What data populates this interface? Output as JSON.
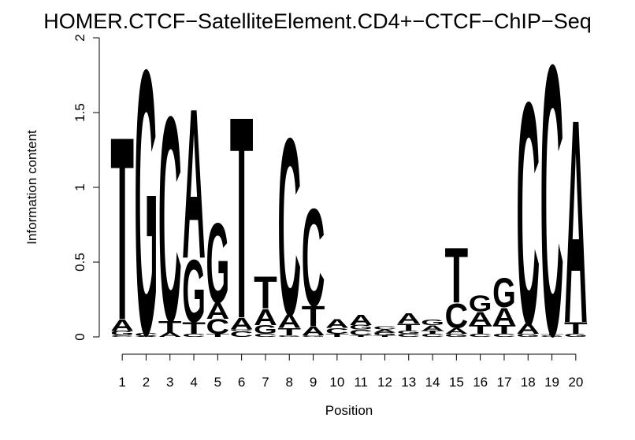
{
  "chart_data": {
    "type": "sequence-logo",
    "title": "HOMER.CTCF−SatelliteElement.CD4+−CTCF−ChIP−Seq",
    "xlabel": "Position",
    "ylabel": "Information content",
    "ylim": [
      0,
      2
    ],
    "yticks": [
      {
        "value": 0,
        "label": "0"
      },
      {
        "value": 0.5,
        "label": "0.5"
      },
      {
        "value": 1,
        "label": "1"
      },
      {
        "value": 1.5,
        "label": "1.5"
      },
      {
        "value": 2,
        "label": "2"
      }
    ],
    "letter_colors": {
      "A": "#00e000",
      "C": "#0000ff",
      "G": "#ffa500",
      "T": "#ff0000"
    },
    "positions": [
      {
        "label": "1",
        "stack": [
          [
            "C",
            0.01
          ],
          [
            "G",
            0.03
          ],
          [
            "A",
            0.08
          ],
          [
            "T",
            1.26
          ]
        ]
      },
      {
        "label": "2",
        "stack": [
          [
            "A",
            0.005
          ],
          [
            "C",
            0.02
          ],
          [
            "G",
            1.82
          ]
        ]
      },
      {
        "label": "3",
        "stack": [
          [
            "A",
            0.03
          ],
          [
            "T",
            0.08
          ],
          [
            "C",
            1.41
          ]
        ]
      },
      {
        "label": "4",
        "stack": [
          [
            "C",
            0.02
          ],
          [
            "T",
            0.08
          ],
          [
            "G",
            0.43
          ],
          [
            "A",
            1.03
          ]
        ]
      },
      {
        "label": "5",
        "stack": [
          [
            "T",
            0.02
          ],
          [
            "C",
            0.1
          ],
          [
            "A",
            0.11
          ],
          [
            "G",
            0.55
          ]
        ]
      },
      {
        "label": "6",
        "stack": [
          [
            "C",
            0.04
          ],
          [
            "G",
            0.01
          ],
          [
            "A",
            0.08
          ],
          [
            "T",
            1.39
          ]
        ]
      },
      {
        "label": "7",
        "stack": [
          [
            "C",
            0.02
          ],
          [
            "G",
            0.06
          ],
          [
            "A",
            0.11
          ],
          [
            "T",
            0.22
          ]
        ]
      },
      {
        "label": "8",
        "stack": [
          [
            "G",
            0.01
          ],
          [
            "T",
            0.05
          ],
          [
            "A",
            0.09
          ],
          [
            "C",
            1.22
          ]
        ]
      },
      {
        "label": "9",
        "stack": [
          [
            "G",
            0.01
          ],
          [
            "A",
            0.06
          ],
          [
            "T",
            0.14
          ],
          [
            "C",
            0.67
          ]
        ]
      },
      {
        "label": "10",
        "stack": [
          [
            "T",
            0.02
          ],
          [
            "C",
            0.04
          ],
          [
            "A",
            0.06
          ]
        ]
      },
      {
        "label": "11",
        "stack": [
          [
            "T",
            0.01
          ],
          [
            "C",
            0.04
          ],
          [
            "G",
            0.03
          ],
          [
            "A",
            0.07
          ]
        ]
      },
      {
        "label": "12",
        "stack": [
          [
            "T",
            0.01
          ],
          [
            "G",
            0.02
          ],
          [
            "A",
            0.02
          ],
          [
            "C",
            0.02
          ]
        ]
      },
      {
        "label": "13",
        "stack": [
          [
            "C",
            0.02
          ],
          [
            "G",
            0.02
          ],
          [
            "T",
            0.05
          ],
          [
            "A",
            0.07
          ]
        ]
      },
      {
        "label": "14",
        "stack": [
          [
            "C",
            0.02
          ],
          [
            "T",
            0.02
          ],
          [
            "A",
            0.04
          ],
          [
            "G",
            0.04
          ]
        ]
      },
      {
        "label": "15",
        "stack": [
          [
            "G",
            0.02
          ],
          [
            "A",
            0.04
          ],
          [
            "C",
            0.17
          ],
          [
            "T",
            0.38
          ]
        ]
      },
      {
        "label": "16",
        "stack": [
          [
            "C",
            0.02
          ],
          [
            "T",
            0.06
          ],
          [
            "A",
            0.09
          ],
          [
            "G",
            0.11
          ]
        ]
      },
      {
        "label": "17",
        "stack": [
          [
            "C",
            0.02
          ],
          [
            "T",
            0.06
          ],
          [
            "A",
            0.12
          ],
          [
            "G",
            0.2
          ]
        ]
      },
      {
        "label": "18",
        "stack": [
          [
            "G",
            0.02
          ],
          [
            "A",
            0.07
          ],
          [
            "C",
            1.53
          ]
        ]
      },
      {
        "label": "19",
        "stack": [
          [
            "G",
            0.01
          ],
          [
            "T",
            0.01
          ],
          [
            "C",
            1.86
          ]
        ]
      },
      {
        "label": "20",
        "stack": [
          [
            "G",
            0.02
          ],
          [
            "T",
            0.08
          ],
          [
            "A",
            1.4
          ]
        ]
      }
    ]
  }
}
